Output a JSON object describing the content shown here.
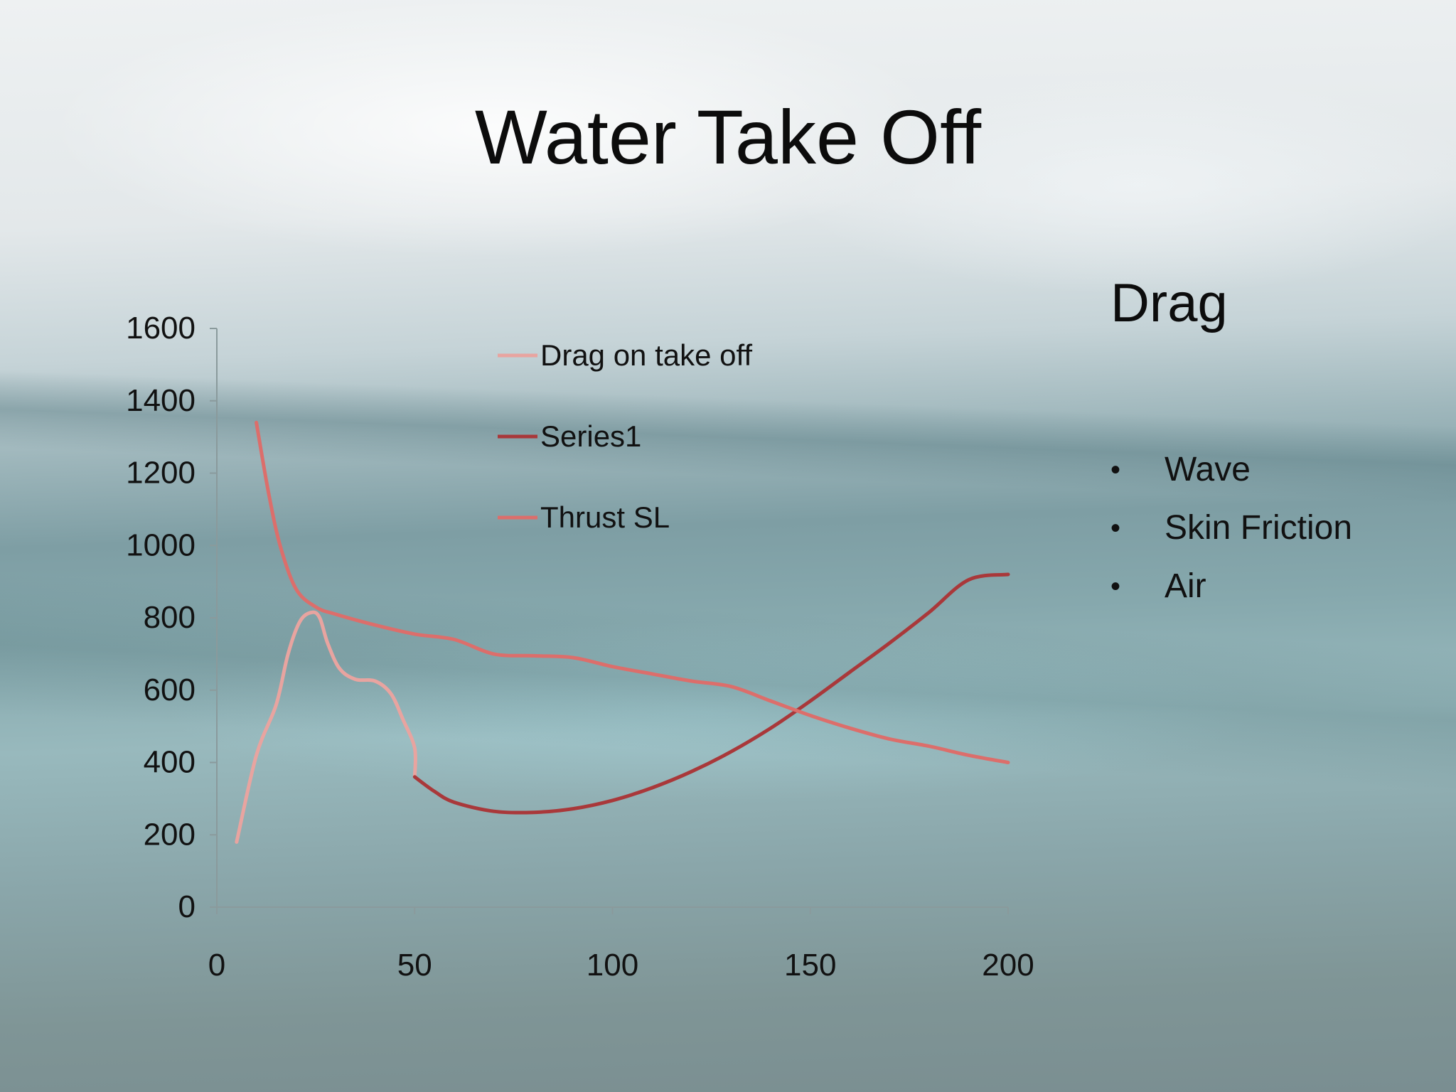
{
  "slide": {
    "title": "Water Take Off",
    "side_heading": "Drag",
    "bullets": [
      "Wave",
      "Skin Friction",
      "Air"
    ]
  },
  "chart_data": {
    "type": "line",
    "title": "",
    "xlabel": "",
    "ylabel": "",
    "xlim": [
      0,
      200
    ],
    "ylim": [
      0,
      1600
    ],
    "x_ticks": [
      0,
      50,
      100,
      150,
      200
    ],
    "y_ticks": [
      0,
      200,
      400,
      600,
      800,
      1000,
      1200,
      1400,
      1600
    ],
    "grid": false,
    "legend_position": "top-center",
    "series": [
      {
        "name": "Drag on take off",
        "color": "#e8a4a0",
        "points": [
          [
            5,
            180
          ],
          [
            10,
            420
          ],
          [
            15,
            560
          ],
          [
            18,
            700
          ],
          [
            21,
            790
          ],
          [
            24,
            815
          ],
          [
            26,
            800
          ],
          [
            28,
            730
          ],
          [
            31,
            660
          ],
          [
            35,
            630
          ],
          [
            40,
            625
          ],
          [
            44,
            590
          ],
          [
            47,
            520
          ],
          [
            50,
            440
          ],
          [
            50,
            360
          ]
        ]
      },
      {
        "name": "Series1",
        "color": "#a9383a",
        "points": [
          [
            50,
            360
          ],
          [
            55,
            320
          ],
          [
            60,
            290
          ],
          [
            70,
            265
          ],
          [
            80,
            262
          ],
          [
            90,
            272
          ],
          [
            100,
            295
          ],
          [
            110,
            330
          ],
          [
            120,
            375
          ],
          [
            130,
            430
          ],
          [
            140,
            495
          ],
          [
            150,
            570
          ],
          [
            160,
            650
          ],
          [
            170,
            730
          ],
          [
            180,
            815
          ],
          [
            190,
            905
          ],
          [
            200,
            920
          ]
        ]
      },
      {
        "name": "Thrust SL",
        "color": "#dc6e6b",
        "points": [
          [
            10,
            1340
          ],
          [
            13,
            1150
          ],
          [
            16,
            1000
          ],
          [
            20,
            880
          ],
          [
            25,
            830
          ],
          [
            30,
            810
          ],
          [
            40,
            780
          ],
          [
            50,
            755
          ],
          [
            60,
            740
          ],
          [
            70,
            700
          ],
          [
            80,
            695
          ],
          [
            90,
            690
          ],
          [
            100,
            665
          ],
          [
            110,
            645
          ],
          [
            120,
            625
          ],
          [
            130,
            610
          ],
          [
            140,
            570
          ],
          [
            150,
            530
          ],
          [
            160,
            495
          ],
          [
            170,
            465
          ],
          [
            180,
            445
          ],
          [
            190,
            420
          ],
          [
            200,
            400
          ]
        ]
      }
    ]
  }
}
